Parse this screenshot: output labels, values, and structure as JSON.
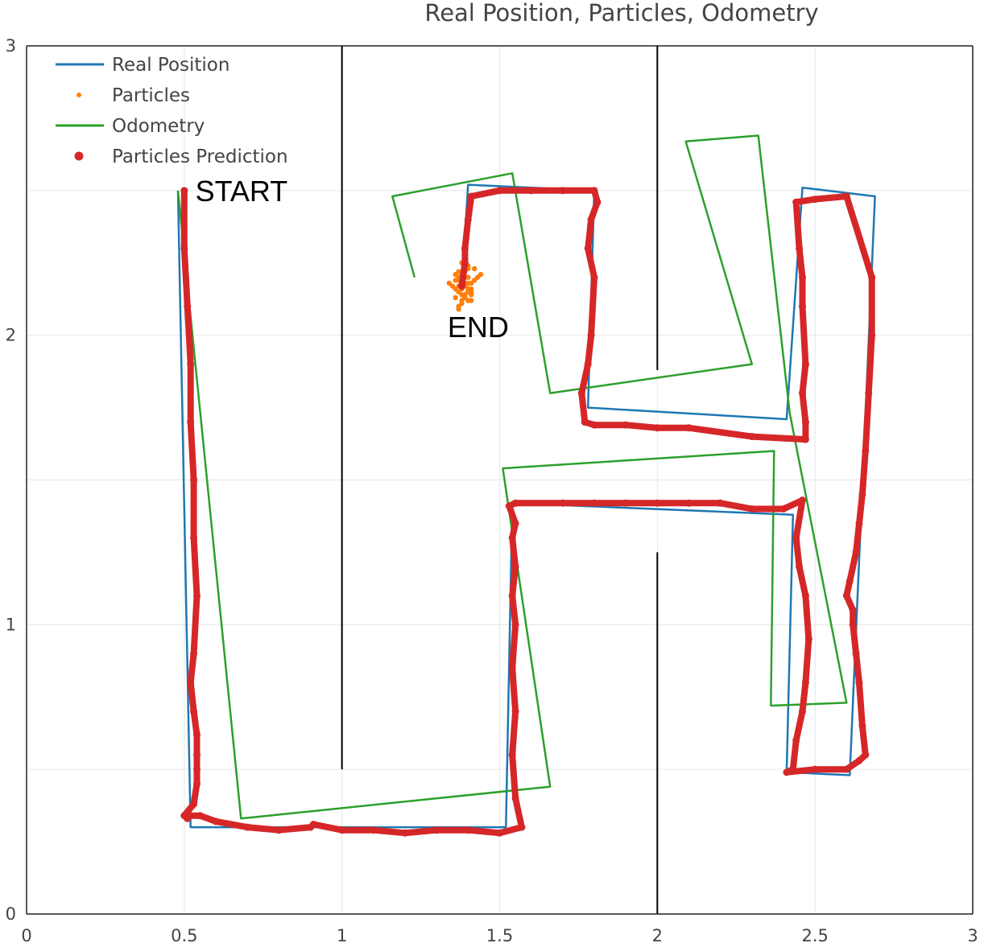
{
  "chart_data": {
    "type": "line",
    "title": "Real Position, Particles, Odometry",
    "xlabel": "",
    "ylabel": "",
    "xlim": [
      0,
      3
    ],
    "ylim": [
      0,
      3
    ],
    "grid": true,
    "legend_placement": "top-left",
    "x_ticks": [
      {
        "value": 0,
        "label": "0"
      },
      {
        "value": 0.5,
        "label": "0.5"
      },
      {
        "value": 1,
        "label": "1"
      },
      {
        "value": 1.5,
        "label": "1.5"
      },
      {
        "value": 2,
        "label": "2"
      },
      {
        "value": 2.5,
        "label": "2.5"
      },
      {
        "value": 3,
        "label": "3"
      }
    ],
    "y_ticks": [
      {
        "value": 0,
        "label": "0"
      },
      {
        "value": 1,
        "label": "1"
      },
      {
        "value": 2,
        "label": "2"
      },
      {
        "value": 3,
        "label": "3"
      }
    ],
    "walls": [
      {
        "x": [
          1.0,
          1.0
        ],
        "y": [
          3.0,
          0.5
        ]
      },
      {
        "x": [
          2.0,
          2.0
        ],
        "y": [
          3.0,
          1.88
        ]
      },
      {
        "x": [
          2.0,
          2.0
        ],
        "y": [
          1.25,
          0.0
        ]
      }
    ],
    "series": [
      {
        "name": "Real Position",
        "mode": "lines",
        "color": "#1f77b4",
        "x": [
          0.48,
          0.52,
          1.52,
          1.54,
          2.43,
          2.41,
          2.61,
          2.69,
          2.46,
          2.41,
          1.78,
          1.8,
          1.4,
          1.38
        ],
        "y": [
          2.5,
          0.3,
          0.3,
          1.42,
          1.38,
          0.49,
          0.48,
          2.48,
          2.51,
          1.71,
          1.75,
          2.5,
          2.52,
          2.17
        ]
      },
      {
        "name": "Particles",
        "mode": "markers",
        "color": "#ff7f0e",
        "x": [
          1.38,
          1.39,
          1.4,
          1.37,
          1.41,
          1.36,
          1.38,
          1.4,
          1.39,
          1.37,
          1.42,
          1.38,
          1.36,
          1.41,
          1.39,
          1.37,
          1.4,
          1.38,
          1.43,
          1.35,
          1.39,
          1.41,
          1.37,
          1.38,
          1.4,
          1.36,
          1.42,
          1.39,
          1.38,
          1.37,
          1.4,
          1.39,
          1.41,
          1.38,
          1.36,
          1.4,
          1.37,
          1.39,
          1.38,
          1.41,
          1.44,
          1.34,
          1.39,
          1.37,
          1.4
        ],
        "y": [
          2.18,
          2.2,
          2.16,
          2.22,
          2.14,
          2.19,
          2.12,
          2.23,
          2.17,
          2.15,
          2.19,
          2.21,
          2.16,
          2.12,
          2.24,
          2.1,
          2.18,
          2.14,
          2.2,
          2.17,
          2.22,
          2.16,
          2.19,
          2.11,
          2.15,
          2.13,
          2.23,
          2.18,
          2.25,
          2.2,
          2.12,
          2.14,
          2.18,
          2.16,
          2.21,
          2.2,
          2.17,
          2.13,
          2.19,
          2.15,
          2.21,
          2.18,
          2.26,
          2.09,
          2.24
        ]
      },
      {
        "name": "Odometry",
        "mode": "lines",
        "color": "#2ca02c",
        "x": [
          0.48,
          0.68,
          1.66,
          1.51,
          2.37,
          2.36,
          2.6,
          2.42,
          2.32,
          2.09,
          2.3,
          1.66,
          1.54,
          1.16,
          1.23
        ],
        "y": [
          2.5,
          0.33,
          0.44,
          1.54,
          1.6,
          0.72,
          0.73,
          1.73,
          2.69,
          2.67,
          1.9,
          1.8,
          2.56,
          2.48,
          2.2
        ]
      },
      {
        "name": "Particles Prediction",
        "mode": "lines+markers",
        "color": "#d62728",
        "x": [
          0.5,
          0.5,
          0.51,
          0.52,
          0.52,
          0.53,
          0.53,
          0.54,
          0.53,
          0.52,
          0.53,
          0.54,
          0.54,
          0.54,
          0.54,
          0.53,
          0.5,
          0.51,
          0.52,
          0.55,
          0.6,
          0.7,
          0.8,
          0.9,
          0.91,
          1.0,
          1.1,
          1.2,
          1.3,
          1.4,
          1.5,
          1.57,
          1.55,
          1.54,
          1.55,
          1.54,
          1.55,
          1.54,
          1.55,
          1.54,
          1.55,
          1.53,
          1.55,
          1.7,
          1.8,
          1.9,
          2.0,
          2.1,
          2.2,
          2.3,
          2.4,
          2.46,
          2.44,
          2.45,
          2.47,
          2.48,
          2.47,
          2.46,
          2.44,
          2.43,
          2.41,
          2.5,
          2.6,
          2.64,
          2.66,
          2.65,
          2.64,
          2.63,
          2.62,
          2.62,
          2.6,
          2.61,
          2.63,
          2.64,
          2.65,
          2.66,
          2.67,
          2.68,
          2.68,
          2.6,
          2.5,
          2.44,
          2.45,
          2.46,
          2.46,
          2.47,
          2.46,
          2.47,
          2.47,
          2.3,
          2.1,
          2.0,
          1.9,
          1.8,
          1.77,
          1.76,
          1.78,
          1.79,
          1.8,
          1.78,
          1.79,
          1.81,
          1.8,
          1.7,
          1.6,
          1.5,
          1.41,
          1.4,
          1.39,
          1.39,
          1.38
        ],
        "y": [
          2.5,
          2.3,
          2.1,
          1.9,
          1.7,
          1.5,
          1.3,
          1.1,
          0.9,
          0.8,
          0.7,
          0.62,
          0.55,
          0.5,
          0.45,
          0.38,
          0.34,
          0.33,
          0.34,
          0.34,
          0.32,
          0.3,
          0.29,
          0.3,
          0.31,
          0.29,
          0.29,
          0.28,
          0.29,
          0.29,
          0.28,
          0.3,
          0.4,
          0.55,
          0.7,
          0.85,
          1.0,
          1.1,
          1.2,
          1.3,
          1.35,
          1.41,
          1.42,
          1.42,
          1.42,
          1.42,
          1.42,
          1.42,
          1.42,
          1.4,
          1.4,
          1.43,
          1.3,
          1.2,
          1.1,
          0.95,
          0.8,
          0.7,
          0.6,
          0.5,
          0.49,
          0.5,
          0.5,
          0.53,
          0.55,
          0.65,
          0.8,
          0.9,
          1.0,
          1.05,
          1.1,
          1.15,
          1.25,
          1.35,
          1.45,
          1.6,
          1.8,
          2.0,
          2.2,
          2.48,
          2.47,
          2.46,
          2.3,
          2.2,
          2.1,
          1.9,
          1.8,
          1.7,
          1.64,
          1.65,
          1.68,
          1.68,
          1.69,
          1.69,
          1.7,
          1.8,
          1.9,
          2.0,
          2.2,
          2.3,
          2.4,
          2.46,
          2.5,
          2.5,
          2.5,
          2.5,
          2.48,
          2.4,
          2.3,
          2.25,
          2.17
        ]
      }
    ],
    "annotations": [
      {
        "text": "START",
        "x": 0.53,
        "y": 2.5
      },
      {
        "text": "END",
        "x": 1.33,
        "y": 2.03
      }
    ]
  }
}
